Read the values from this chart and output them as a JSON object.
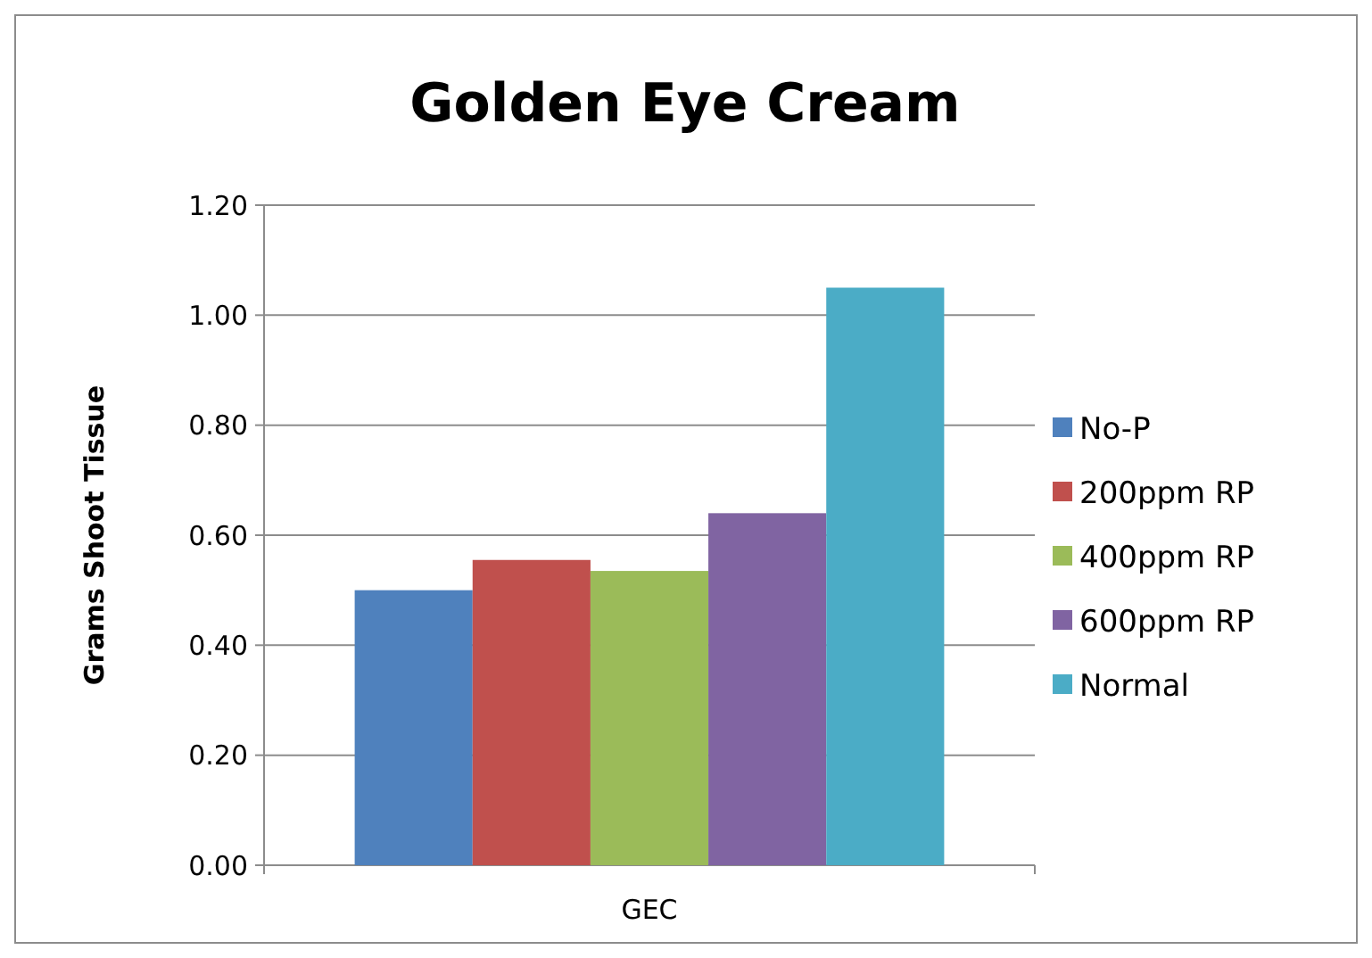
{
  "chart_data": {
    "type": "bar",
    "title": "Golden Eye Cream",
    "ylabel": "Grams Shoot Tissue",
    "categories": [
      "GEC"
    ],
    "series": [
      {
        "name": "No-P",
        "color": "#4f81bd",
        "values": [
          0.5
        ]
      },
      {
        "name": "200ppm RP",
        "color": "#c0504d",
        "values": [
          0.555
        ]
      },
      {
        "name": "400ppm RP",
        "color": "#9bbb59",
        "values": [
          0.535
        ]
      },
      {
        "name": "600ppm RP",
        "color": "#8064a2",
        "values": [
          0.64
        ]
      },
      {
        "name": "Normal",
        "color": "#4bacc6",
        "values": [
          1.05
        ]
      }
    ],
    "ylim": [
      0,
      1.2
    ],
    "yticks": [
      {
        "value": 0,
        "label": "0.00"
      },
      {
        "value": 0.2,
        "label": "0.20"
      },
      {
        "value": 0.4,
        "label": "0.40"
      },
      {
        "value": 0.6,
        "label": "0.60"
      },
      {
        "value": 0.8,
        "label": "0.80"
      },
      {
        "value": 1,
        "label": "1.00"
      },
      {
        "value": 1.2,
        "label": "1.20"
      }
    ],
    "grid": "y",
    "legend": "right"
  }
}
